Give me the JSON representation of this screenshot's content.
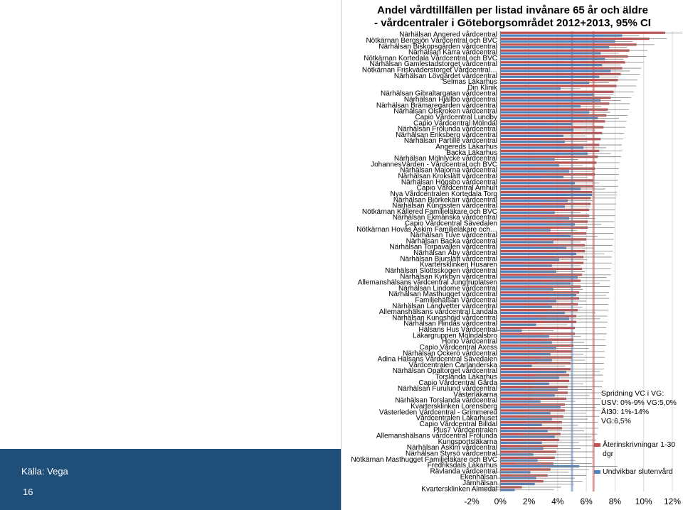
{
  "source_label": "Källa: Vega",
  "page_number": "16",
  "info": {
    "line1": "Spridning VC i VG:",
    "line2": "USV: 0%-9% VG:5,0%",
    "line3": "ÅI30: 1%-14% VG:6,5%"
  },
  "colors": {
    "readmissions": "#c0504d",
    "avoidable": "#4f81bd",
    "left_band": "#1f4e79"
  },
  "chart_data": {
    "type": "bar",
    "orientation": "horizontal",
    "title": "Andel vårdtillfällen per listad invånare 65 år och äldre",
    "subtitle": "- vårdcentraler i Göteborgsområdet 2012+2013, 95% CI",
    "xlim": [
      -2,
      12
    ],
    "xticks": [
      "-2%",
      "0%",
      "2%",
      "4%",
      "6%",
      "8%",
      "10%",
      "12%"
    ],
    "reference_lines": [
      {
        "value": 5.0,
        "color": "#4f81bd"
      },
      {
        "value": 6.5,
        "color": "#c0504d"
      }
    ],
    "legend_placement": "bottom-right",
    "categories": [
      "Närhälsan Angered vårdcentral",
      "Nötkärnan Bergsjön Vårdcentral och BVC",
      "Närhälsan Biskopsgården vårdcentral",
      "Närhälsan Kärra vårdcentral",
      "Nötkärnan Kortedala Vårdcentral och BVC",
      "Närhälsan Gamlestadstorget vårdcentral",
      "Nötkärnan Friskväderstorget Vårdcentral…",
      "Närhälsan Lövgärdet vårdcentral",
      "Selmas Läkarhus",
      "Din Klinik",
      "Närhälsan Gibraltargatan vårdcentral",
      "Närhälsan Hjällbo vårdcentral",
      "Närhälsan Brämaregården vårdcentral",
      "Närhälsan Olskroken vårdcentral",
      "Capio Vårdcentral Lundby",
      "Capio Vårdcentral Mölndal",
      "Närhälsan Frölunda vårdcentral",
      "Närhälsan Eriksberg vårdcentral",
      "Närhälsan Partille vårdcentral",
      "Angereds Läkarhus",
      "Backa Läkarhus",
      "Närhälsan Mölnlycke vårdcentral",
      "JohannesVården - Vårdcentral och BVC",
      "Närhälsan Majorna vårdcentral",
      "Närhälsan Krokslätt vårdcentral",
      "Närhälsan Högsbo vårdcentral",
      "Capio Vårdcentral Amhult",
      "Nya Vårdcentralen Kortedala Torg",
      "Närhälsan Björkekärr vårdcentral",
      "Närhälsan Kungssten vårdcentral",
      "Nötkärnan Kållered Familjeläkare och BVC",
      "Närhälsan Ekmanska vårdcentral",
      "Capio Vårdcentral Sävedalen",
      "Nötkärnan Hovås Askim Familjeläkare och…",
      "Närhälsan Tuve vårdcentral",
      "Närhälsan Backa vårdcentral",
      "Närhälsan Torpavallen vårdcentral",
      "Närhälsan Åby vårdcentral",
      "Närhälsan Bjurslätt vårdcentral",
      "Kvartersklinken Husaren",
      "Närhälsan Slottsskogen vårdcentral",
      "Närhälsan Kyrkbyn vårdcentral",
      "Allemanshälsans vårdcentral Jungfruplatsen",
      "Närhälsan Lindome vårdcentral",
      "Närhälsan Masthugget vårdcentral",
      "Familjehälsan Vårdcentral",
      "Närhälsan Landvetter vårdcentral",
      "Allemanshälsans vårdcentral Landala",
      "Närhälsan Kungshöjd vårdcentral",
      "Närhälsan Hindås vårdcentral",
      "Hälsans Hus Vårdcentral",
      "Läkargruppen Mölndalsbro",
      "Hono Vårdcentral",
      "Capio Vårdcentral Axess",
      "Närhälsan Öckerö vårdcentral",
      "Adina Hälsans Vårdcentral Sävedalen",
      "Vårdcentralen Carlanderska",
      "Närhälsan Opaltorget vårdcentral",
      "Torslanda Läkarhus",
      "Capio Vårdcentral Gårda",
      "Närhälsan Furulund vårdcentral",
      "Västerläkarna",
      "Närhälsan Torslanda vårdcentral",
      "Kvartersklinken Lorensberg",
      "Västerleden Vårdcentral - Grimmered",
      "Vårdcentralen Läkarhuset",
      "Capio Vårdcentral Billdal",
      "Plus7 Vårdcentralen",
      "Allemanshälsans vårdcentral Frölunda",
      "Kungsportsläkarna",
      "Närhälsan Askim vårdcentral",
      "Närhälsan Styrsö vårdcentral",
      "Nötkärnan Masthugget Familjeläkare och BVC",
      "Fredriksdals Läkarhus",
      "Rävlanda vårdcentral",
      "Ekenhälsan",
      "Järnhälsan",
      "Kvartersklinken Almedal"
    ],
    "series": [
      {
        "name": "Återinskrivningar 1-30 dgr",
        "values": [
          11.5,
          10.4,
          9.5,
          9.0,
          8.9,
          8.7,
          8.5,
          8.4,
          8.2,
          8.1,
          7.9,
          7.7,
          7.6,
          7.5,
          7.4,
          7.3,
          7.2,
          7.1,
          7.0,
          6.9,
          6.9,
          6.8,
          6.7,
          6.6,
          6.6,
          6.5,
          6.5,
          6.4,
          6.3,
          6.3,
          6.2,
          6.2,
          6.1,
          6.1,
          6.0,
          6.0,
          5.9,
          5.9,
          5.8,
          5.8,
          5.7,
          5.7,
          5.6,
          5.6,
          5.5,
          5.5,
          5.4,
          5.4,
          5.3,
          5.3,
          5.2,
          5.2,
          5.1,
          5.1,
          5.0,
          5.0,
          4.9,
          4.9,
          4.8,
          4.8,
          4.7,
          4.7,
          4.6,
          4.5,
          4.5,
          4.4,
          4.3,
          4.3,
          4.2,
          4.1,
          4.0,
          3.9,
          3.8,
          3.7,
          3.5,
          3.3,
          3.0,
          1.5
        ]
      },
      {
        "name": "Undvikbar slutenvård",
        "values": [
          8.5,
          8.0,
          7.6,
          7.0,
          7.3,
          7.1,
          7.7,
          6.9,
          6.2,
          4.2,
          6.5,
          7.0,
          5.6,
          6.2,
          6.8,
          5.0,
          5.1,
          4.4,
          4.5,
          5.8,
          6.1,
          3.8,
          4.1,
          4.8,
          4.4,
          5.2,
          5.6,
          6.4,
          4.7,
          4.5,
          3.8,
          4.8,
          5.2,
          3.5,
          4.9,
          3.7,
          4.6,
          5.3,
          4.1,
          3.6,
          3.9,
          5.4,
          4.9,
          3.7,
          5.3,
          3.9,
          3.6,
          4.5,
          4.8,
          2.5,
          1.5,
          3.4,
          3.6,
          3.9,
          3.5,
          3.6,
          2.2,
          4.6,
          4.1,
          3.4,
          4.0,
          3.8,
          2.8,
          4.2,
          3.5,
          3.6,
          2.9,
          3.3,
          3.8,
          2.9,
          3.0,
          2.3,
          2.6,
          5.5,
          2.1,
          2.5,
          2.4,
          1.0
        ]
      }
    ]
  }
}
